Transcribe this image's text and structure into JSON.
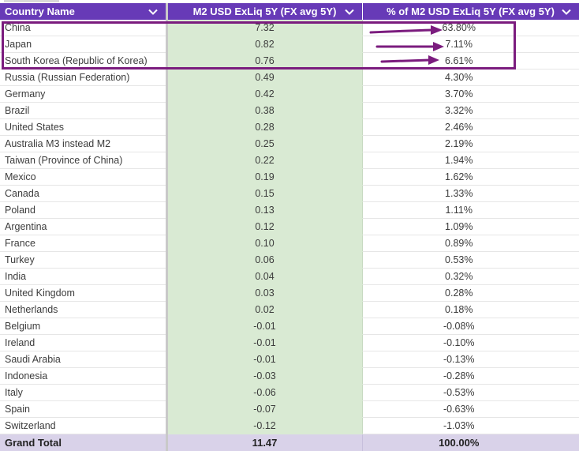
{
  "columns": {
    "country": "Country Name",
    "m2": "M2 USD ExLiq 5Y (FX avg 5Y)",
    "pct": "% of M2 USD ExLiq 5Y (FX avg 5Y)"
  },
  "rows": [
    {
      "country": "China",
      "m2": "7.32",
      "pct": "63.80%"
    },
    {
      "country": "Japan",
      "m2": "0.82",
      "pct": "7.11%"
    },
    {
      "country": "South Korea (Republic of Korea)",
      "m2": "0.76",
      "pct": "6.61%"
    },
    {
      "country": "Russia (Russian Federation)",
      "m2": "0.49",
      "pct": "4.30%"
    },
    {
      "country": "Germany",
      "m2": "0.42",
      "pct": "3.70%"
    },
    {
      "country": "Brazil",
      "m2": "0.38",
      "pct": "3.32%"
    },
    {
      "country": "United States",
      "m2": "0.28",
      "pct": "2.46%"
    },
    {
      "country": "Australia M3 instead M2",
      "m2": "0.25",
      "pct": "2.19%"
    },
    {
      "country": "Taiwan (Province of China)",
      "m2": "0.22",
      "pct": "1.94%"
    },
    {
      "country": "Mexico",
      "m2": "0.19",
      "pct": "1.62%"
    },
    {
      "country": "Canada",
      "m2": "0.15",
      "pct": "1.33%"
    },
    {
      "country": "Poland",
      "m2": "0.13",
      "pct": "1.11%"
    },
    {
      "country": "Argentina",
      "m2": "0.12",
      "pct": "1.09%"
    },
    {
      "country": "France",
      "m2": "0.10",
      "pct": "0.89%"
    },
    {
      "country": "Turkey",
      "m2": "0.06",
      "pct": "0.53%"
    },
    {
      "country": "India",
      "m2": "0.04",
      "pct": "0.32%"
    },
    {
      "country": "United Kingdom",
      "m2": "0.03",
      "pct": "0.28%"
    },
    {
      "country": "Netherlands",
      "m2": "0.02",
      "pct": "0.18%"
    },
    {
      "country": "Belgium",
      "m2": "-0.01",
      "pct": "-0.08%"
    },
    {
      "country": "Ireland",
      "m2": "-0.01",
      "pct": "-0.10%"
    },
    {
      "country": "Saudi Arabia",
      "m2": "-0.01",
      "pct": "-0.13%"
    },
    {
      "country": "Indonesia",
      "m2": "-0.03",
      "pct": "-0.28%"
    },
    {
      "country": "Italy",
      "m2": "-0.06",
      "pct": "-0.53%"
    },
    {
      "country": "Spain",
      "m2": "-0.07",
      "pct": "-0.63%"
    },
    {
      "country": "Switzerland",
      "m2": "-0.12",
      "pct": "-1.03%"
    }
  ],
  "grand_total": {
    "label": "Grand Total",
    "m2": "11.47",
    "pct": "100.00%"
  },
  "icons": {
    "header_dropdown": "chevron-down-icon",
    "annotation_arrow": "arrow-right-icon"
  },
  "colors": {
    "header_bg": "#673ab7",
    "m2_column_bg": "#d9ead3",
    "grand_total_bg": "#d9d2e9",
    "highlight_box": "#7b1c7e",
    "annotation_arrow": "#7b1c7e"
  }
}
